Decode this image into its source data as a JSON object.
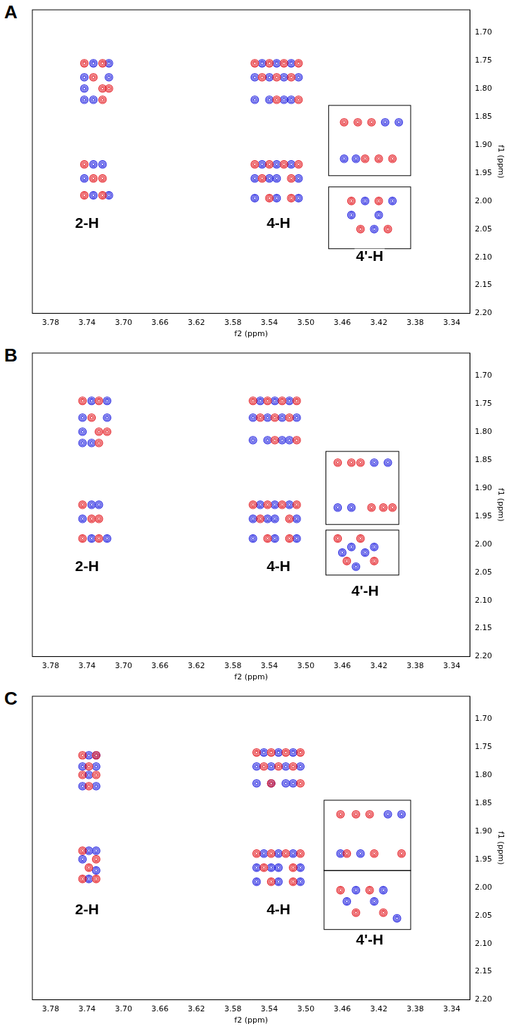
{
  "chart_data": [
    {
      "type": "scatter",
      "title": "A",
      "xlabel": "f2 (ppm)",
      "ylabel": "f1 (ppm)",
      "xlim": [
        3.8,
        3.32
      ],
      "ylim": [
        1.66,
        2.2
      ],
      "xticks": [
        3.78,
        3.74,
        {
          "value": 3.7,
          "label": "3.70"
        },
        3.66,
        3.62,
        3.58,
        3.54,
        {
          "value": 3.5,
          "label": "3.50"
        },
        3.46,
        3.42,
        3.38,
        3.34
      ],
      "yticks": [
        {
          "value": 1.7,
          "label": "1.70"
        },
        1.75,
        {
          "value": 1.8,
          "label": "1.80"
        },
        1.85,
        {
          "value": 1.9,
          "label": "1.90"
        },
        1.95,
        {
          "value": 2.0,
          "label": "2.00"
        },
        2.05,
        {
          "value": 2.1,
          "label": "2.10"
        },
        2.15,
        {
          "value": 2.2,
          "label": "2.20"
        }
      ],
      "grid": false,
      "annotations": [
        {
          "text": "2-H",
          "x": 3.74,
          "y": 2.04
        },
        {
          "text": "4-H",
          "x": 3.53,
          "y": 2.04
        },
        {
          "text": "4'-H",
          "x": 3.43,
          "y": 2.1
        }
      ],
      "boxes": [
        {
          "x": [
            3.475,
            3.385
          ],
          "y": [
            1.83,
            1.955
          ]
        },
        {
          "x": [
            3.475,
            3.385
          ],
          "y": [
            1.975,
            2.085
          ]
        }
      ],
      "series": [
        {
          "color": "#e3141b",
          "marker": "circle",
          "x": [
            3.743,
            3.723,
            3.733,
            3.723,
            3.716,
            3.723,
            3.743,
            3.733,
            3.723,
            3.743,
            3.723,
            3.556,
            3.54,
            3.524,
            3.508,
            3.548,
            3.532,
            3.516,
            3.532,
            3.508,
            3.556,
            3.54,
            3.524,
            3.508,
            3.548,
            3.516,
            3.54,
            3.516,
            3.458,
            3.443,
            3.428,
            3.435,
            3.42,
            3.405,
            3.45,
            3.42,
            3.44,
            3.41
          ],
          "values": [
            1.755,
            1.755,
            1.78,
            1.8,
            1.8,
            1.82,
            1.935,
            1.96,
            1.96,
            1.99,
            1.99,
            1.755,
            1.755,
            1.755,
            1.755,
            1.78,
            1.78,
            1.78,
            1.82,
            1.82,
            1.935,
            1.935,
            1.935,
            1.935,
            1.96,
            1.96,
            1.995,
            1.995,
            1.86,
            1.86,
            1.86,
            1.925,
            1.925,
            1.925,
            2.0,
            2.0,
            2.05,
            2.05
          ]
        },
        {
          "color": "#1a1adf",
          "marker": "circle",
          "x": [
            3.733,
            3.716,
            3.743,
            3.716,
            3.743,
            3.743,
            3.733,
            3.733,
            3.723,
            3.743,
            3.733,
            3.716,
            3.548,
            3.532,
            3.516,
            3.556,
            3.54,
            3.524,
            3.508,
            3.556,
            3.54,
            3.524,
            3.516,
            3.548,
            3.532,
            3.516,
            3.556,
            3.54,
            3.532,
            3.508,
            3.556,
            3.532,
            3.508,
            3.458,
            3.445,
            3.413,
            3.398,
            3.435,
            3.405,
            3.45,
            3.42,
            3.425
          ],
          "values": [
            1.755,
            1.755,
            1.78,
            1.78,
            1.8,
            1.82,
            1.82,
            1.935,
            1.935,
            1.96,
            1.99,
            1.99,
            1.755,
            1.755,
            1.755,
            1.78,
            1.78,
            1.78,
            1.78,
            1.82,
            1.82,
            1.82,
            1.82,
            1.935,
            1.935,
            1.935,
            1.96,
            1.96,
            1.96,
            1.96,
            1.995,
            1.995,
            1.995,
            1.925,
            1.925,
            1.86,
            1.86,
            2.0,
            2.0,
            2.025,
            2.025,
            2.05
          ]
        }
      ]
    },
    {
      "type": "scatter",
      "title": "B",
      "xlabel": "f2 (ppm)",
      "ylabel": "f1 (ppm)",
      "xlim": [
        3.8,
        3.32
      ],
      "ylim": [
        1.66,
        2.2
      ],
      "xticks": [
        3.78,
        3.74,
        {
          "value": 3.7,
          "label": "3.70"
        },
        3.66,
        3.62,
        3.58,
        3.54,
        {
          "value": 3.5,
          "label": "3.50"
        },
        3.46,
        3.42,
        3.38,
        3.34
      ],
      "yticks": [
        {
          "value": 1.7,
          "label": "1.70"
        },
        1.75,
        {
          "value": 1.8,
          "label": "1.80"
        },
        1.85,
        {
          "value": 1.9,
          "label": "1.90"
        },
        1.95,
        {
          "value": 2.0,
          "label": "2.00"
        },
        2.05,
        {
          "value": 2.1,
          "label": "2.10"
        },
        2.15,
        {
          "value": 2.2,
          "label": "2.20"
        }
      ],
      "grid": false,
      "annotations": [
        {
          "text": "2-H",
          "x": 3.74,
          "y": 2.04
        },
        {
          "text": "4-H",
          "x": 3.53,
          "y": 2.04
        },
        {
          "text": "4'-H",
          "x": 3.435,
          "y": 2.085
        }
      ],
      "boxes": [
        {
          "x": [
            3.478,
            3.398
          ],
          "y": [
            1.835,
            1.965
          ]
        },
        {
          "x": [
            3.478,
            3.398
          ],
          "y": [
            1.975,
            2.055
          ]
        }
      ],
      "series": [
        {
          "color": "#e3141b",
          "marker": "circle",
          "x": [
            3.745,
            3.727,
            3.735,
            3.727,
            3.718,
            3.727,
            3.745,
            3.735,
            3.727,
            3.745,
            3.727,
            3.558,
            3.542,
            3.526,
            3.51,
            3.55,
            3.534,
            3.518,
            3.534,
            3.51,
            3.558,
            3.542,
            3.526,
            3.51,
            3.55,
            3.518,
            3.542,
            3.518,
            3.465,
            3.45,
            3.44,
            3.428,
            3.415,
            3.405,
            3.465,
            3.44,
            3.455,
            3.425
          ],
          "values": [
            1.745,
            1.745,
            1.775,
            1.8,
            1.8,
            1.82,
            1.93,
            1.955,
            1.955,
            1.99,
            1.99,
            1.745,
            1.745,
            1.745,
            1.745,
            1.775,
            1.775,
            1.775,
            1.815,
            1.815,
            1.93,
            1.93,
            1.93,
            1.93,
            1.955,
            1.955,
            1.99,
            1.99,
            1.855,
            1.855,
            1.855,
            1.935,
            1.935,
            1.935,
            1.99,
            1.99,
            2.03,
            2.03
          ]
        },
        {
          "color": "#1a1adf",
          "marker": "circle",
          "x": [
            3.735,
            3.718,
            3.745,
            3.718,
            3.745,
            3.745,
            3.735,
            3.735,
            3.727,
            3.745,
            3.735,
            3.718,
            3.55,
            3.534,
            3.518,
            3.558,
            3.542,
            3.526,
            3.51,
            3.558,
            3.542,
            3.526,
            3.518,
            3.55,
            3.534,
            3.518,
            3.558,
            3.542,
            3.534,
            3.51,
            3.558,
            3.534,
            3.51,
            3.465,
            3.45,
            3.425,
            3.41,
            3.45,
            3.425,
            3.46,
            3.435,
            3.445
          ],
          "values": [
            1.745,
            1.745,
            1.775,
            1.775,
            1.8,
            1.82,
            1.82,
            1.93,
            1.93,
            1.955,
            1.99,
            1.99,
            1.745,
            1.745,
            1.745,
            1.775,
            1.775,
            1.775,
            1.775,
            1.815,
            1.815,
            1.815,
            1.815,
            1.93,
            1.93,
            1.93,
            1.955,
            1.955,
            1.955,
            1.955,
            1.99,
            1.99,
            1.99,
            1.935,
            1.935,
            1.855,
            1.855,
            2.005,
            2.005,
            2.015,
            2.015,
            2.04
          ]
        }
      ]
    },
    {
      "type": "scatter",
      "title": "C",
      "xlabel": "f2 (ppm)",
      "ylabel": "f1 (ppm)",
      "xlim": [
        3.8,
        3.32
      ],
      "ylim": [
        1.66,
        2.2
      ],
      "xticks": [
        3.78,
        3.74,
        {
          "value": 3.7,
          "label": "3.70"
        },
        3.66,
        3.62,
        3.58,
        3.54,
        {
          "value": 3.5,
          "label": "3.50"
        },
        3.46,
        3.42,
        3.38,
        3.34
      ],
      "yticks": [
        {
          "value": 1.7,
          "label": "1.70"
        },
        1.75,
        {
          "value": 1.8,
          "label": "1.80"
        },
        1.85,
        {
          "value": 1.9,
          "label": "1.90"
        },
        1.95,
        {
          "value": 2.0,
          "label": "2.00"
        },
        2.05,
        {
          "value": 2.1,
          "label": "2.10"
        },
        2.15,
        {
          "value": 2.2,
          "label": "2.20"
        }
      ],
      "grid": false,
      "annotations": [
        {
          "text": "2-H",
          "x": 3.74,
          "y": 2.04
        },
        {
          "text": "4-H",
          "x": 3.53,
          "y": 2.04
        },
        {
          "text": "4'-H",
          "x": 3.43,
          "y": 2.095
        }
      ],
      "boxes": [
        {
          "x": [
            3.48,
            3.385
          ],
          "y": [
            1.845,
            1.97
          ]
        },
        {
          "x": [
            3.48,
            3.385
          ],
          "y": [
            1.97,
            2.075
          ]
        }
      ],
      "series": [
        {
          "color": "#e3141b",
          "marker": "circle",
          "x": [
            3.745,
            3.73,
            3.738,
            3.73,
            3.745,
            3.738,
            3.745,
            3.73,
            3.738,
            3.745,
            3.73,
            3.554,
            3.538,
            3.522,
            3.506,
            3.546,
            3.53,
            3.514,
            3.538,
            3.506,
            3.554,
            3.538,
            3.522,
            3.506,
            3.546,
            3.514,
            3.538,
            3.514,
            3.462,
            3.445,
            3.43,
            3.455,
            3.425,
            3.395,
            3.462,
            3.43,
            3.445,
            3.415
          ],
          "values": [
            1.765,
            1.765,
            1.785,
            1.8,
            1.8,
            1.82,
            1.935,
            1.95,
            1.965,
            1.985,
            1.985,
            1.76,
            1.76,
            1.76,
            1.76,
            1.785,
            1.785,
            1.785,
            1.815,
            1.815,
            1.94,
            1.94,
            1.94,
            1.94,
            1.965,
            1.965,
            1.99,
            1.99,
            1.87,
            1.87,
            1.87,
            1.94,
            1.94,
            1.94,
            2.005,
            2.005,
            2.045,
            2.045
          ]
        },
        {
          "color": "#1a1adf",
          "marker": "circle",
          "x": [
            3.738,
            3.73,
            3.745,
            3.73,
            3.738,
            3.745,
            3.73,
            3.738,
            3.73,
            3.745,
            3.738,
            3.73,
            3.546,
            3.53,
            3.514,
            3.554,
            3.538,
            3.522,
            3.506,
            3.554,
            3.538,
            3.522,
            3.514,
            3.546,
            3.53,
            3.514,
            3.554,
            3.538,
            3.53,
            3.506,
            3.554,
            3.53,
            3.506,
            3.462,
            3.44,
            3.41,
            3.395,
            3.445,
            3.415,
            3.455,
            3.425,
            3.4
          ],
          "values": [
            1.765,
            1.765,
            1.785,
            1.785,
            1.8,
            1.82,
            1.82,
            1.935,
            1.935,
            1.95,
            1.985,
            1.97,
            1.76,
            1.76,
            1.76,
            1.785,
            1.785,
            1.785,
            1.785,
            1.815,
            1.815,
            1.815,
            1.815,
            1.94,
            1.94,
            1.94,
            1.965,
            1.965,
            1.965,
            1.965,
            1.99,
            1.99,
            1.99,
            1.94,
            1.94,
            1.87,
            1.87,
            2.005,
            2.005,
            2.025,
            2.025,
            2.055
          ]
        }
      ]
    }
  ]
}
